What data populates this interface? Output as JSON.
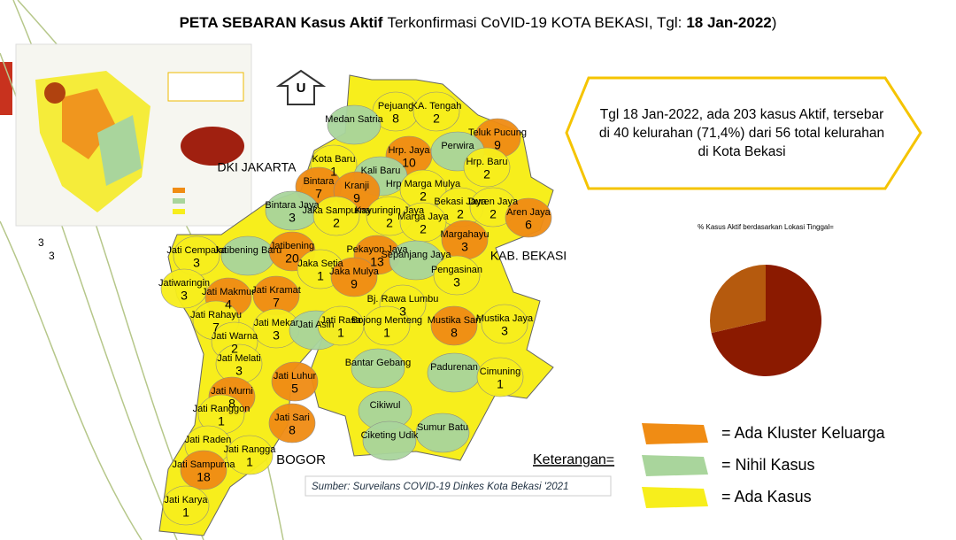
{
  "title": {
    "bold1": "PETA SEBARAN Kasus Aktif",
    "normal1": "Terkonfirmasi CoVID-19 KOTA BEKASI, Tgl:",
    "bold2": "18 Jan-2022",
    "normal2": ")"
  },
  "info_box": {
    "lines": [
      "Tgl 18 Jan-2022, ada 203 kasus Aktif, tersebar",
      "di 40 kelurahan (71,4%) dari 56 total kelurahan",
      "di Kota Bekasi"
    ]
  },
  "pie": {
    "title": "% Kasus Aktif berdasarkan Lokasi Tinggal=",
    "values": [
      71.4,
      28.6
    ],
    "colors": [
      "#8b1a00",
      "#b55a0e"
    ]
  },
  "legend": {
    "title": "Keterangan=",
    "items": [
      {
        "key": "kluster",
        "label": "= Ada Kluster Keluarga",
        "color": "#f08c14"
      },
      {
        "key": "nihil",
        "label": "= Nihil Kasus",
        "color": "#a9d59c"
      },
      {
        "key": "ada",
        "label": "= Ada Kasus",
        "color": "#f7ee1c"
      }
    ]
  },
  "source": "Sumber: Surveilans COVID-19 Dinkes Kota Bekasi '2021",
  "north": "U",
  "area_labels": [
    "DKI JAKARTA",
    "KAB. BEKASI",
    "BOGOR"
  ],
  "stray_labels": [
    "3",
    "3"
  ],
  "regions": [
    {
      "name": "Pejuang",
      "count": "8",
      "status": "ada"
    },
    {
      "name": "KA. Tengah",
      "count": "2",
      "status": "ada"
    },
    {
      "name": "Medan Satria",
      "count": null,
      "status": "nihil"
    },
    {
      "name": "Teluk Pucung",
      "count": "9",
      "status": "kluster"
    },
    {
      "name": "Hrp. Jaya",
      "count": "10",
      "status": "kluster"
    },
    {
      "name": "Perwira",
      "count": null,
      "status": "nihil"
    },
    {
      "name": "Hrp. Baru",
      "count": "2",
      "status": "ada"
    },
    {
      "name": "Kota Baru",
      "count": "1",
      "status": "ada"
    },
    {
      "name": "Kali Baru",
      "count": null,
      "status": "nihil"
    },
    {
      "name": "Bintara",
      "count": "7",
      "status": "kluster"
    },
    {
      "name": "Kranji",
      "count": "9",
      "status": "kluster"
    },
    {
      "name": "Hrp Marga Mulya",
      "count": "2",
      "status": "ada"
    },
    {
      "name": "Bekasi Jaya",
      "count": "2",
      "status": "ada"
    },
    {
      "name": "Duren Jaya",
      "count": "2",
      "status": "ada"
    },
    {
      "name": "Aren Jaya",
      "count": "6",
      "status": "kluster"
    },
    {
      "name": "Bintara Jaya",
      "count": "3",
      "status": "nihil"
    },
    {
      "name": "Jaka Sampurna",
      "count": "2",
      "status": "ada"
    },
    {
      "name": "Kayuringin Jaya",
      "count": "2",
      "status": "ada"
    },
    {
      "name": "Marga Jaya",
      "count": "2",
      "status": "ada"
    },
    {
      "name": "Margahayu",
      "count": "3",
      "status": "kluster"
    },
    {
      "name": "Jati Cempaka",
      "count": "3",
      "status": "ada"
    },
    {
      "name": "Jatibening Baru",
      "count": null,
      "status": "nihil"
    },
    {
      "name": "Jatibening",
      "count": "20",
      "status": "kluster"
    },
    {
      "name": "Jaka Setia",
      "count": "1",
      "status": "ada"
    },
    {
      "name": "Pekayon Jaya",
      "count": "13",
      "status": "kluster"
    },
    {
      "name": "Sepanjang Jaya",
      "count": null,
      "status": "nihil"
    },
    {
      "name": "Pengasinan",
      "count": "3",
      "status": "ada"
    },
    {
      "name": "Jatiwaringin",
      "count": "3",
      "status": "ada"
    },
    {
      "name": "Jati Makmur",
      "count": "4",
      "status": "kluster"
    },
    {
      "name": "Jati Kramat",
      "count": "7",
      "status": "kluster"
    },
    {
      "name": "Jaka Mulya",
      "count": "9",
      "status": "kluster"
    },
    {
      "name": "Bj. Rawa Lumbu",
      "count": "3",
      "status": "ada"
    },
    {
      "name": "Mustika Jaya",
      "count": "3",
      "status": "ada"
    },
    {
      "name": "Jati Rahayu",
      "count": "7",
      "status": "ada"
    },
    {
      "name": "Jati Mekar",
      "count": "3",
      "status": "ada"
    },
    {
      "name": "Jati Asih",
      "count": null,
      "status": "nihil"
    },
    {
      "name": "Jati Rasa",
      "count": "1",
      "status": "ada"
    },
    {
      "name": "Bojong Menteng",
      "count": "1",
      "status": "ada"
    },
    {
      "name": "Mustika Sari",
      "count": "8",
      "status": "kluster"
    },
    {
      "name": "Jati Warna",
      "count": "2",
      "status": "ada"
    },
    {
      "name": "Jati Melati",
      "count": "3",
      "status": "ada"
    },
    {
      "name": "Bantar Gebang",
      "count": null,
      "status": "nihil"
    },
    {
      "name": "Padurenan",
      "count": null,
      "status": "nihil"
    },
    {
      "name": "Cimuning",
      "count": "1",
      "status": "ada"
    },
    {
      "name": "Jati Luhur",
      "count": "5",
      "status": "kluster"
    },
    {
      "name": "Jati Murni",
      "count": "8",
      "status": "kluster"
    },
    {
      "name": "Jati Ranggon",
      "count": "1",
      "status": "ada"
    },
    {
      "name": "Jati Sari",
      "count": "8",
      "status": "kluster"
    },
    {
      "name": "Cikiwul",
      "count": null,
      "status": "nihil"
    },
    {
      "name": "Ciketing Udik",
      "count": null,
      "status": "nihil"
    },
    {
      "name": "Sumur Batu",
      "count": null,
      "status": "nihil"
    },
    {
      "name": "Jati Raden",
      "count": null,
      "status": "ada"
    },
    {
      "name": "Jati Sampurna",
      "count": "18",
      "status": "kluster"
    },
    {
      "name": "Jati Rangga",
      "count": "1",
      "status": "ada"
    },
    {
      "name": "Jati Karya",
      "count": "1",
      "status": "ada"
    }
  ]
}
